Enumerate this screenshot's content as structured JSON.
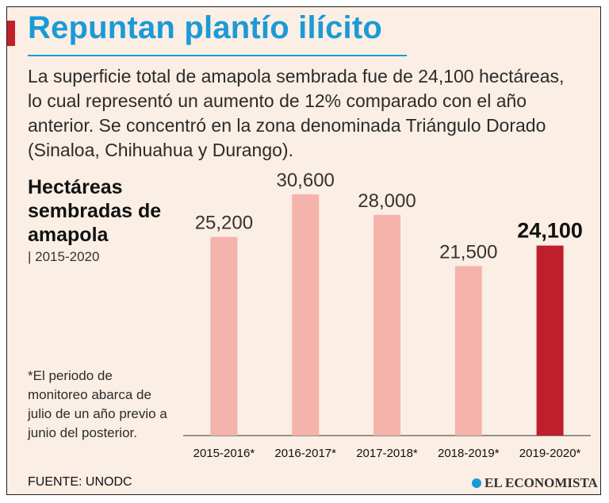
{
  "header": {
    "title": "Repuntan plantío ilícito",
    "intro": "La superficie total de amapola sembrada fue de 24,100 hectáreas, lo cual representó un aumento de 12% comparado con el año anterior. Se concentró en la zona denominada Triángulo Dorado (Sinaloa, Chihuahua y Durango)."
  },
  "chart_heading": {
    "title": "Hectáreas sembradas de amapola",
    "period": "| 2015-2020"
  },
  "footnote": "*El periodo de monitoreo abarca de julio de un año previo a junio del posterior.",
  "source": "FUENTE: UNODC",
  "brand": "EL ECONOMISTA",
  "colors": {
    "title": "#1b9ad6",
    "bar": "#f4b4ab",
    "highlight": "#bf1e2c",
    "accent_mark": "#c0202a"
  },
  "chart_data": {
    "type": "bar",
    "title": "Hectáreas sembradas de amapola",
    "categories": [
      "2015-2016*",
      "2016-2017*",
      "2017-2018*",
      "2018-2019*",
      "2019-2020*"
    ],
    "values": [
      25200,
      30600,
      28000,
      21500,
      24100
    ],
    "value_labels": [
      "25,200",
      "30,600",
      "28,000",
      "21,500",
      "24,100"
    ],
    "highlight_index": 4,
    "ylim": [
      0,
      31000
    ],
    "xlabel": "",
    "ylabel": "",
    "grid": false
  }
}
